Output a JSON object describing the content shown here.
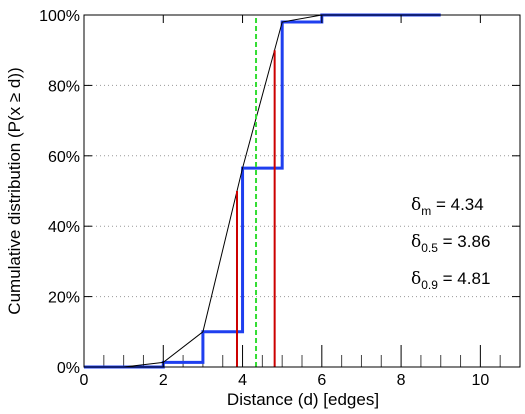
{
  "chart_data": {
    "type": "line",
    "title": "",
    "xlabel": "Distance (d) [edges]",
    "ylabel": "Cumulative distribution (P(x ≥ d))",
    "xlim": [
      0,
      11
    ],
    "ylim": [
      0,
      1
    ],
    "x_ticks": [
      0,
      2,
      4,
      6,
      8,
      10
    ],
    "x_tick_labels": [
      "0",
      "2",
      "4",
      "6",
      "8",
      "10"
    ],
    "y_ticks": [
      0,
      0.2,
      0.4,
      0.6,
      0.8,
      1.0
    ],
    "y_tick_labels": [
      "0%",
      "20%",
      "40%",
      "60%",
      "80%",
      "100%"
    ],
    "grid": "horizontal dotted",
    "series": [
      {
        "color": "#1f3fef",
        "style": "step",
        "x": [
          0,
          2,
          3,
          4,
          5,
          6,
          9
        ],
        "y": [
          0,
          0.013,
          0.1,
          0.565,
          0.98,
          1.0,
          1.0
        ]
      },
      {
        "color": "#000000",
        "style": "line",
        "x": [
          0,
          1,
          2,
          3,
          4,
          5,
          6
        ],
        "y": [
          0,
          0,
          0.013,
          0.1,
          0.565,
          0.98,
          1.0
        ]
      }
    ],
    "vertical_lines": [
      {
        "x": 3.86,
        "ymax": 0.5,
        "color": "#cc0000",
        "style": "solid"
      },
      {
        "x": 4.81,
        "ymax": 0.9,
        "color": "#cc0000",
        "style": "solid"
      },
      {
        "x": 4.34,
        "ymax": 1.0,
        "color": "#33dd33",
        "style": "dashed"
      }
    ],
    "annotations": [
      {
        "symbol": "δ",
        "subscript": "m",
        "text": " = 4.34"
      },
      {
        "symbol": "δ",
        "subscript": "0.5",
        "text": " = 3.86"
      },
      {
        "symbol": "δ",
        "subscript": "0.9",
        "text": " = 4.81"
      }
    ]
  }
}
